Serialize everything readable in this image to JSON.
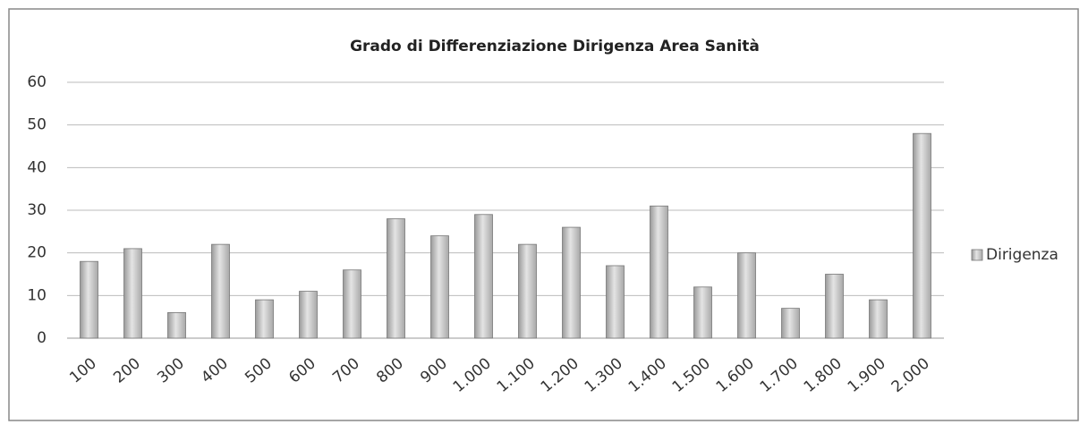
{
  "chart_data": {
    "type": "bar",
    "title": "Grado di Differenziazione Dirigenza Area Sanità",
    "categories": [
      "100",
      "200",
      "300",
      "400",
      "500",
      "600",
      "700",
      "800",
      "900",
      "1.000",
      "1.100",
      "1.200",
      "1.300",
      "1.400",
      "1.500",
      "1.600",
      "1.700",
      "1.800",
      "1.900",
      "2.000"
    ],
    "series": [
      {
        "name": "Dirigenza",
        "color": "#c8c8c8",
        "values": [
          18,
          21,
          6,
          22,
          9,
          11,
          16,
          28,
          24,
          29,
          22,
          26,
          17,
          31,
          12,
          20,
          7,
          15,
          9,
          48
        ]
      }
    ],
    "ylim": [
      0,
      60
    ],
    "yticks": [
      0,
      10,
      20,
      30,
      40,
      50,
      60
    ],
    "grid": true,
    "legend": "right"
  }
}
